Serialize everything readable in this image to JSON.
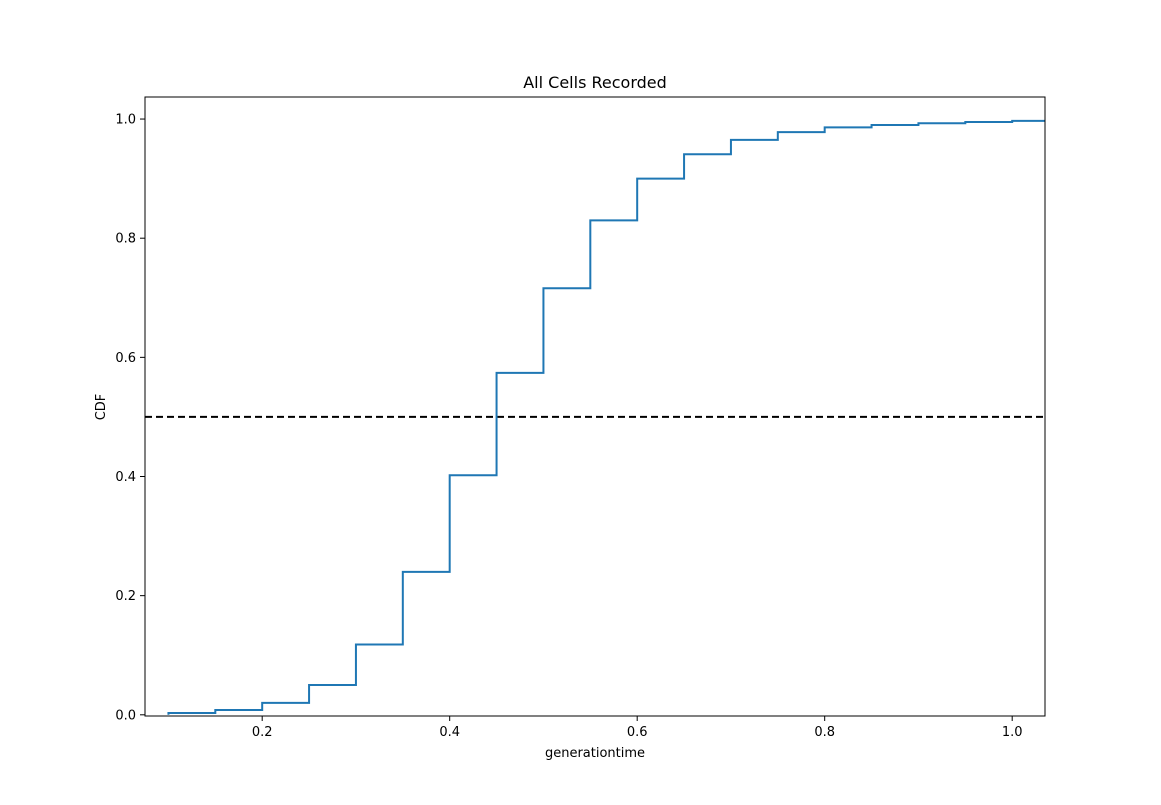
{
  "chart_data": {
    "type": "line",
    "title": "All Cells Recorded",
    "xlabel": "generationtime",
    "ylabel": "CDF",
    "xlim": [
      0.075,
      1.035
    ],
    "ylim": [
      -0.002,
      1.037
    ],
    "grid": false,
    "legend": "none",
    "x_ticks": [
      0.2,
      0.4,
      0.6,
      0.8,
      1.0
    ],
    "x_tick_labels": [
      "0.2",
      "0.4",
      "0.6",
      "0.8",
      "1.0"
    ],
    "y_ticks": [
      0.0,
      0.2,
      0.4,
      0.6,
      0.8,
      1.0
    ],
    "y_tick_labels": [
      "0.0",
      "0.2",
      "0.4",
      "0.6",
      "0.8",
      "1.0"
    ],
    "series": [
      {
        "style": "step",
        "color": "#1f77b4",
        "x": [
          0.1,
          0.15,
          0.2,
          0.25,
          0.3,
          0.35,
          0.4,
          0.45,
          0.5,
          0.55,
          0.6,
          0.65,
          0.7,
          0.75,
          0.8,
          0.85,
          0.9,
          0.95,
          1.0,
          1.035
        ],
        "y": [
          0.003,
          0.008,
          0.02,
          0.05,
          0.118,
          0.24,
          0.402,
          0.574,
          0.716,
          0.83,
          0.9,
          0.941,
          0.965,
          0.978,
          0.986,
          0.99,
          0.993,
          0.995,
          0.997,
          0.997
        ]
      }
    ],
    "reference_line": {
      "y": 0.5,
      "style": "dashed",
      "color": "#000000"
    }
  }
}
